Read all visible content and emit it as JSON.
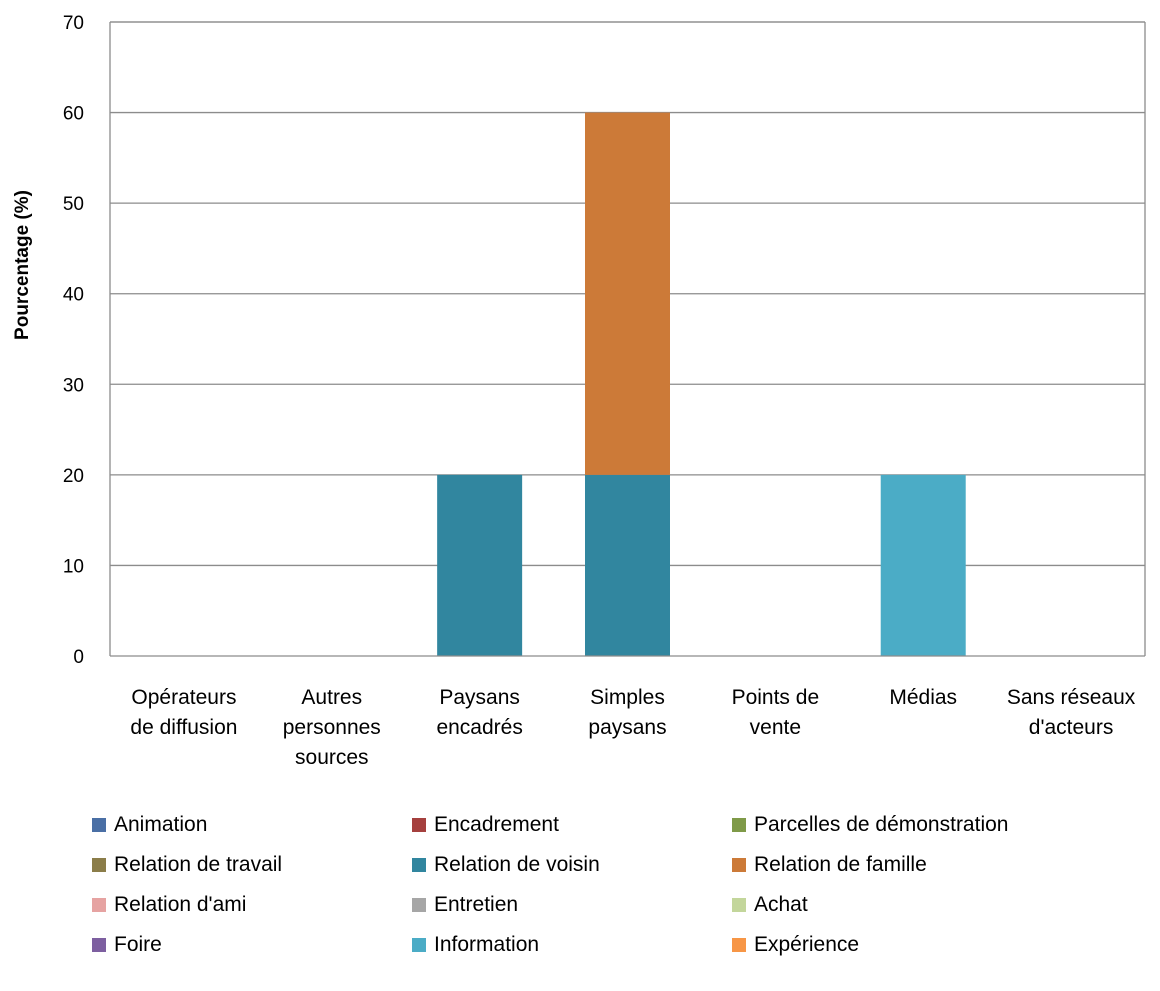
{
  "chart_data": {
    "type": "bar",
    "stacked": true,
    "ylabel": "Pourcentage (%)",
    "ylim": [
      0,
      70
    ],
    "yticks": [
      0,
      10,
      20,
      30,
      40,
      50,
      60,
      70
    ],
    "grid": true,
    "legend_position": "bottom",
    "categories": [
      [
        "Opérateurs",
        "de diffusion"
      ],
      [
        "Autres",
        "personnes",
        "sources"
      ],
      [
        "Paysans",
        "encadrés"
      ],
      [
        "Simples",
        "paysans"
      ],
      [
        "Points de",
        "vente"
      ],
      [
        "Médias"
      ],
      [
        "Sans réseaux",
        "d'acteurs"
      ]
    ],
    "series": [
      {
        "name": "Animation",
        "color": "#4a6fa5",
        "values": [
          0,
          0,
          0,
          0,
          0,
          0,
          0
        ]
      },
      {
        "name": "Encadrement",
        "color": "#a5403e",
        "values": [
          0,
          0,
          0,
          0,
          0,
          0,
          0
        ]
      },
      {
        "name": "Parcelles de démonstration",
        "color": "#7f9a48",
        "values": [
          0,
          0,
          0,
          0,
          0,
          0,
          0
        ]
      },
      {
        "name": "Relation de travail",
        "color": "#8b7d49",
        "values": [
          0,
          0,
          0,
          0,
          0,
          0,
          0
        ]
      },
      {
        "name": "Relation de voisin",
        "color": "#31869f",
        "values": [
          0,
          0,
          20,
          20,
          0,
          0,
          0
        ]
      },
      {
        "name": "Relation de famille",
        "color": "#cc7a38",
        "values": [
          0,
          0,
          0,
          40,
          0,
          0,
          0
        ]
      },
      {
        "name": "Relation  d'ami",
        "color": "#e6a3a2",
        "values": [
          0,
          0,
          0,
          0,
          0,
          0,
          0
        ]
      },
      {
        "name": "Entretien",
        "color": "#a6a6a6",
        "values": [
          0,
          0,
          0,
          0,
          0,
          0,
          0
        ]
      },
      {
        "name": "Achat",
        "color": "#c3d69b",
        "values": [
          0,
          0,
          0,
          0,
          0,
          0,
          0
        ]
      },
      {
        "name": "Foire",
        "color": "#7d5fa0",
        "values": [
          0,
          0,
          0,
          0,
          0,
          0,
          0
        ]
      },
      {
        "name": "Information",
        "color": "#4bacc6",
        "values": [
          0,
          0,
          0,
          0,
          0,
          20,
          0
        ]
      },
      {
        "name": "Expérience",
        "color": "#f79646",
        "values": [
          0,
          0,
          0,
          0,
          0,
          0,
          0
        ]
      }
    ]
  }
}
